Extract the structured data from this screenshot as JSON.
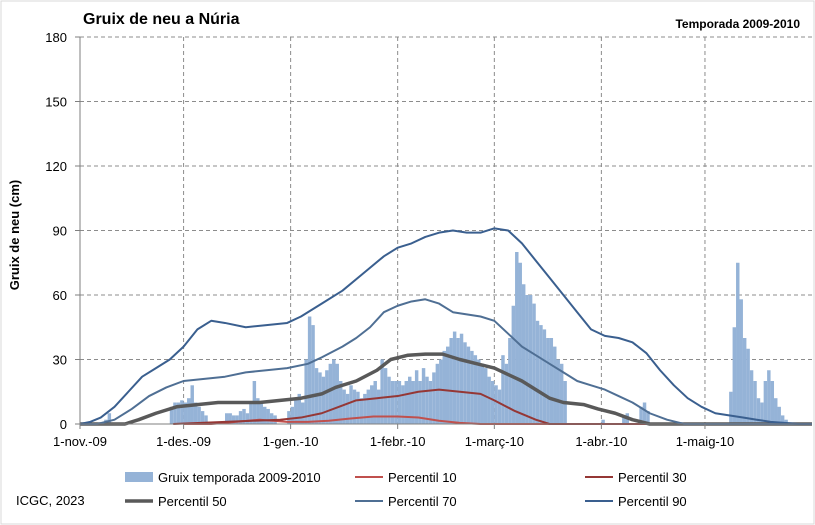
{
  "chart_data": {
    "type": "bar+line",
    "title": "Gruix de neu a Núria",
    "subtitle": "Temporada 2009-2010",
    "ylabel": "Gruix de neu (cm)",
    "xlabel": "",
    "ylim": [
      0,
      180
    ],
    "yticks": [
      "0",
      "30",
      "60",
      "90",
      "120",
      "150",
      "180"
    ],
    "xlim_days": [
      0,
      212
    ],
    "x_ticks": [
      {
        "day": 0,
        "label": "1-nov.-09"
      },
      {
        "day": 30,
        "label": "1-des.-09"
      },
      {
        "day": 61,
        "label": "1-gen.-10"
      },
      {
        "day": 92,
        "label": "1-febr.-10"
      },
      {
        "day": 120,
        "label": "1-març-10"
      },
      {
        "day": 151,
        "label": "1-abr.-10"
      },
      {
        "day": 181,
        "label": "1-maig-10"
      }
    ],
    "grid": "dashed",
    "bar_series": {
      "name": "Gruix temporada 2009-2010",
      "color": "#95b3d7",
      "values": [
        {
          "day": 7,
          "y": 2
        },
        {
          "day": 8,
          "y": 5
        },
        {
          "day": 26,
          "y": 8
        },
        {
          "day": 27,
          "y": 10
        },
        {
          "day": 28,
          "y": 10
        },
        {
          "day": 29,
          "y": 11
        },
        {
          "day": 30,
          "y": 10
        },
        {
          "day": 31,
          "y": 12
        },
        {
          "day": 32,
          "y": 18
        },
        {
          "day": 33,
          "y": 10
        },
        {
          "day": 34,
          "y": 8
        },
        {
          "day": 35,
          "y": 6
        },
        {
          "day": 36,
          "y": 4
        },
        {
          "day": 42,
          "y": 5
        },
        {
          "day": 43,
          "y": 5
        },
        {
          "day": 44,
          "y": 4
        },
        {
          "day": 45,
          "y": 4
        },
        {
          "day": 46,
          "y": 6
        },
        {
          "day": 47,
          "y": 7
        },
        {
          "day": 48,
          "y": 5
        },
        {
          "day": 49,
          "y": 10
        },
        {
          "day": 50,
          "y": 20
        },
        {
          "day": 51,
          "y": 12
        },
        {
          "day": 52,
          "y": 10
        },
        {
          "day": 53,
          "y": 8
        },
        {
          "day": 54,
          "y": 7
        },
        {
          "day": 55,
          "y": 5
        },
        {
          "day": 56,
          "y": 4
        },
        {
          "day": 60,
          "y": 6
        },
        {
          "day": 61,
          "y": 8
        },
        {
          "day": 62,
          "y": 12
        },
        {
          "day": 63,
          "y": 14
        },
        {
          "day": 64,
          "y": 10
        },
        {
          "day": 65,
          "y": 30
        },
        {
          "day": 66,
          "y": 50
        },
        {
          "day": 67,
          "y": 46
        },
        {
          "day": 68,
          "y": 26
        },
        {
          "day": 69,
          "y": 24
        },
        {
          "day": 70,
          "y": 22
        },
        {
          "day": 71,
          "y": 25
        },
        {
          "day": 72,
          "y": 28
        },
        {
          "day": 73,
          "y": 30
        },
        {
          "day": 74,
          "y": 28
        },
        {
          "day": 75,
          "y": 20
        },
        {
          "day": 76,
          "y": 16
        },
        {
          "day": 77,
          "y": 14
        },
        {
          "day": 78,
          "y": 18
        },
        {
          "day": 79,
          "y": 16
        },
        {
          "day": 80,
          "y": 15
        },
        {
          "day": 81,
          "y": 12
        },
        {
          "day": 82,
          "y": 14
        },
        {
          "day": 83,
          "y": 16
        },
        {
          "day": 84,
          "y": 18
        },
        {
          "day": 85,
          "y": 20
        },
        {
          "day": 86,
          "y": 16
        },
        {
          "day": 87,
          "y": 30
        },
        {
          "day": 88,
          "y": 26
        },
        {
          "day": 89,
          "y": 22
        },
        {
          "day": 90,
          "y": 20
        },
        {
          "day": 91,
          "y": 20
        },
        {
          "day": 92,
          "y": 20
        },
        {
          "day": 93,
          "y": 18
        },
        {
          "day": 94,
          "y": 20
        },
        {
          "day": 95,
          "y": 22
        },
        {
          "day": 96,
          "y": 20
        },
        {
          "day": 97,
          "y": 25
        },
        {
          "day": 98,
          "y": 20
        },
        {
          "day": 99,
          "y": 26
        },
        {
          "day": 100,
          "y": 22
        },
        {
          "day": 101,
          "y": 20
        },
        {
          "day": 102,
          "y": 24
        },
        {
          "day": 103,
          "y": 28
        },
        {
          "day": 104,
          "y": 30
        },
        {
          "day": 105,
          "y": 34
        },
        {
          "day": 106,
          "y": 36
        },
        {
          "day": 107,
          "y": 40
        },
        {
          "day": 108,
          "y": 43
        },
        {
          "day": 109,
          "y": 40
        },
        {
          "day": 110,
          "y": 42
        },
        {
          "day": 111,
          "y": 38
        },
        {
          "day": 112,
          "y": 36
        },
        {
          "day": 113,
          "y": 34
        },
        {
          "day": 114,
          "y": 32
        },
        {
          "day": 115,
          "y": 30
        },
        {
          "day": 116,
          "y": 28
        },
        {
          "day": 117,
          "y": 26
        },
        {
          "day": 118,
          "y": 22
        },
        {
          "day": 119,
          "y": 20
        },
        {
          "day": 120,
          "y": 18
        },
        {
          "day": 121,
          "y": 16
        },
        {
          "day": 122,
          "y": 32
        },
        {
          "day": 123,
          "y": 28
        },
        {
          "day": 124,
          "y": 40
        },
        {
          "day": 125,
          "y": 55
        },
        {
          "day": 126,
          "y": 80
        },
        {
          "day": 127,
          "y": 75
        },
        {
          "day": 128,
          "y": 65
        },
        {
          "day": 129,
          "y": 60
        },
        {
          "day": 130,
          "y": 60
        },
        {
          "day": 131,
          "y": 56
        },
        {
          "day": 132,
          "y": 48
        },
        {
          "day": 133,
          "y": 46
        },
        {
          "day": 134,
          "y": 44
        },
        {
          "day": 135,
          "y": 40
        },
        {
          "day": 136,
          "y": 40
        },
        {
          "day": 137,
          "y": 36
        },
        {
          "day": 138,
          "y": 30
        },
        {
          "day": 139,
          "y": 28
        },
        {
          "day": 140,
          "y": 20
        },
        {
          "day": 151,
          "y": 2
        },
        {
          "day": 157,
          "y": 4
        },
        {
          "day": 158,
          "y": 5
        },
        {
          "day": 162,
          "y": 8
        },
        {
          "day": 163,
          "y": 10
        },
        {
          "day": 164,
          "y": 6
        },
        {
          "day": 188,
          "y": 15
        },
        {
          "day": 189,
          "y": 45
        },
        {
          "day": 190,
          "y": 75
        },
        {
          "day": 191,
          "y": 58
        },
        {
          "day": 192,
          "y": 40
        },
        {
          "day": 193,
          "y": 35
        },
        {
          "day": 194,
          "y": 25
        },
        {
          "day": 195,
          "y": 20
        },
        {
          "day": 196,
          "y": 12
        },
        {
          "day": 197,
          "y": 10
        },
        {
          "day": 198,
          "y": 20
        },
        {
          "day": 199,
          "y": 25
        },
        {
          "day": 200,
          "y": 20
        },
        {
          "day": 201,
          "y": 12
        },
        {
          "day": 202,
          "y": 8
        },
        {
          "day": 203,
          "y": 4
        },
        {
          "day": 204,
          "y": 2
        }
      ]
    },
    "line_series": [
      {
        "name": "Percentil 10",
        "color": "#c0504d",
        "width": 2,
        "points": [
          [
            30,
            0
          ],
          [
            38,
            0
          ],
          [
            45,
            1
          ],
          [
            52,
            2
          ],
          [
            60,
            1
          ],
          [
            66,
            1
          ],
          [
            72,
            1.5
          ],
          [
            78,
            2.5
          ],
          [
            85,
            3.5
          ],
          [
            92,
            3.5
          ],
          [
            98,
            3
          ],
          [
            104,
            1.5
          ],
          [
            110,
            0.5
          ],
          [
            116,
            0
          ],
          [
            212,
            0
          ]
        ]
      },
      {
        "name": "Percentil 30",
        "color": "#953735",
        "width": 2,
        "points": [
          [
            27,
            0
          ],
          [
            35,
            0.5
          ],
          [
            42,
            1
          ],
          [
            50,
            1.5
          ],
          [
            58,
            2
          ],
          [
            64,
            3
          ],
          [
            70,
            5
          ],
          [
            75,
            8
          ],
          [
            80,
            11
          ],
          [
            86,
            12
          ],
          [
            92,
            13
          ],
          [
            98,
            15
          ],
          [
            104,
            16
          ],
          [
            110,
            15
          ],
          [
            116,
            14
          ],
          [
            120,
            11
          ],
          [
            126,
            6
          ],
          [
            132,
            2
          ],
          [
            136,
            0
          ],
          [
            212,
            0
          ]
        ]
      },
      {
        "name": "Percentil 50",
        "color": "#595959",
        "width": 3.5,
        "points": [
          [
            0,
            0
          ],
          [
            13,
            0
          ],
          [
            17,
            2
          ],
          [
            22,
            5
          ],
          [
            28,
            8
          ],
          [
            34,
            9
          ],
          [
            40,
            10
          ],
          [
            46,
            10
          ],
          [
            52,
            10
          ],
          [
            58,
            11
          ],
          [
            64,
            12
          ],
          [
            70,
            14
          ],
          [
            74,
            17
          ],
          [
            80,
            20
          ],
          [
            86,
            25
          ],
          [
            90,
            30
          ],
          [
            95,
            32
          ],
          [
            100,
            32.5
          ],
          [
            105,
            32.5
          ],
          [
            110,
            30
          ],
          [
            115,
            28
          ],
          [
            120,
            26
          ],
          [
            124,
            23
          ],
          [
            128,
            20
          ],
          [
            132,
            16
          ],
          [
            136,
            12
          ],
          [
            140,
            10
          ],
          [
            146,
            9
          ],
          [
            150,
            7
          ],
          [
            155,
            5
          ],
          [
            160,
            2
          ],
          [
            165,
            0
          ],
          [
            212,
            0
          ]
        ]
      },
      {
        "name": "Percentil 70",
        "color": "#4f6f94",
        "width": 2,
        "points": [
          [
            0,
            0
          ],
          [
            5,
            0
          ],
          [
            10,
            2
          ],
          [
            15,
            7
          ],
          [
            20,
            13
          ],
          [
            25,
            17
          ],
          [
            30,
            20
          ],
          [
            36,
            21
          ],
          [
            42,
            22
          ],
          [
            48,
            24
          ],
          [
            54,
            25
          ],
          [
            60,
            26
          ],
          [
            66,
            28
          ],
          [
            70,
            31
          ],
          [
            76,
            36
          ],
          [
            80,
            40
          ],
          [
            84,
            45
          ],
          [
            88,
            52
          ],
          [
            92,
            55
          ],
          [
            96,
            57
          ],
          [
            100,
            58
          ],
          [
            104,
            56
          ],
          [
            108,
            52
          ],
          [
            112,
            51
          ],
          [
            116,
            50
          ],
          [
            120,
            48
          ],
          [
            124,
            42
          ],
          [
            128,
            36
          ],
          [
            132,
            32
          ],
          [
            136,
            28
          ],
          [
            140,
            24
          ],
          [
            144,
            20
          ],
          [
            148,
            18
          ],
          [
            152,
            16
          ],
          [
            156,
            13
          ],
          [
            160,
            10
          ],
          [
            165,
            5
          ],
          [
            170,
            2
          ],
          [
            175,
            0
          ],
          [
            212,
            0
          ]
        ]
      },
      {
        "name": "Percentil 90",
        "color": "#3a5f8f",
        "width": 2,
        "points": [
          [
            0,
            0
          ],
          [
            3,
            1
          ],
          [
            6,
            3
          ],
          [
            10,
            8
          ],
          [
            14,
            15
          ],
          [
            18,
            22
          ],
          [
            22,
            26
          ],
          [
            26,
            30
          ],
          [
            30,
            36
          ],
          [
            34,
            44
          ],
          [
            38,
            48
          ],
          [
            42,
            47
          ],
          [
            48,
            45
          ],
          [
            54,
            46
          ],
          [
            60,
            47
          ],
          [
            64,
            50
          ],
          [
            70,
            56
          ],
          [
            76,
            62
          ],
          [
            82,
            70
          ],
          [
            88,
            78
          ],
          [
            92,
            82
          ],
          [
            96,
            84
          ],
          [
            100,
            87
          ],
          [
            104,
            89
          ],
          [
            108,
            90
          ],
          [
            112,
            89
          ],
          [
            116,
            89
          ],
          [
            120,
            91
          ],
          [
            124,
            90
          ],
          [
            128,
            84
          ],
          [
            132,
            76
          ],
          [
            136,
            68
          ],
          [
            140,
            60
          ],
          [
            144,
            52
          ],
          [
            148,
            44
          ],
          [
            152,
            41
          ],
          [
            156,
            40
          ],
          [
            160,
            38
          ],
          [
            164,
            33
          ],
          [
            168,
            25
          ],
          [
            172,
            18
          ],
          [
            176,
            12
          ],
          [
            180,
            8
          ],
          [
            184,
            5
          ],
          [
            188,
            4
          ],
          [
            192,
            3
          ],
          [
            196,
            2
          ],
          [
            200,
            1
          ],
          [
            204,
            0.5
          ],
          [
            208,
            0
          ],
          [
            212,
            0
          ]
        ]
      }
    ],
    "legend": [
      {
        "label": "Gruix temporada 2009-2010",
        "kind": "bar",
        "color": "#95b3d7"
      },
      {
        "label": "Percentil 10",
        "kind": "line",
        "color": "#c0504d"
      },
      {
        "label": "Percentil 30",
        "kind": "line",
        "color": "#953735"
      },
      {
        "label": "Percentil 50",
        "kind": "line",
        "color": "#595959"
      },
      {
        "label": "Percentil 70",
        "kind": "line",
        "color": "#4f6f94"
      },
      {
        "label": "Percentil 90",
        "kind": "line",
        "color": "#3a5f8f"
      }
    ],
    "legend_position": "bottom"
  },
  "credit": "ICGC, 2023"
}
